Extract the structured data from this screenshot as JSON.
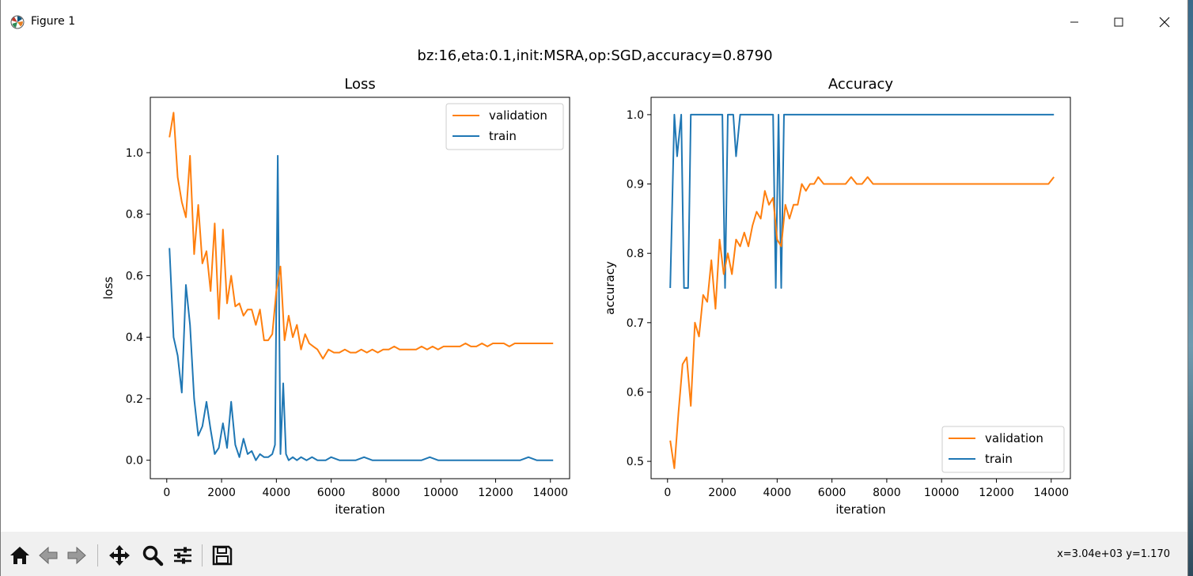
{
  "window": {
    "title": "Figure 1",
    "icon": "matplotlib-logo-icon",
    "controls": [
      "minimize-icon",
      "maximize-icon",
      "close-icon"
    ]
  },
  "figure": {
    "suptitle": "bz:16,eta:0.1,init:MSRA,op:SGD,accuracy=0.8790"
  },
  "toolbar": {
    "buttons": [
      "home-icon",
      "back-icon",
      "forward-icon",
      "pan-icon",
      "zoom-icon",
      "configure-icon",
      "save-icon"
    ],
    "coords": "x=3.04e+03 y=1.170"
  },
  "colors": {
    "validation": "#ff7f0e",
    "train": "#1f77b4"
  },
  "chart_data": [
    {
      "type": "line",
      "title": "Loss",
      "xlabel": "iteration",
      "ylabel": "loss",
      "xlim": [
        -600,
        14700
      ],
      "ylim": [
        -0.06,
        1.18
      ],
      "xticks": [
        0,
        2000,
        4000,
        6000,
        8000,
        10000,
        12000,
        14000
      ],
      "xtick_labels": [
        "0",
        "2000",
        "4000",
        "6000",
        "8000",
        "10000",
        "12000",
        "14000"
      ],
      "yticks": [
        0.0,
        0.2,
        0.4,
        0.6,
        0.8,
        1.0
      ],
      "ytick_labels": [
        "0.0",
        "0.2",
        "0.4",
        "0.6",
        "0.8",
        "1.0"
      ],
      "legend": {
        "loc": "upper right",
        "entries": [
          "validation",
          "train"
        ]
      },
      "grid": false,
      "series": [
        {
          "name": "validation",
          "x": [
            100,
            250,
            400,
            550,
            700,
            850,
            1000,
            1150,
            1300,
            1450,
            1600,
            1750,
            1900,
            2050,
            2200,
            2350,
            2500,
            2650,
            2800,
            2950,
            3100,
            3250,
            3400,
            3550,
            3700,
            3850,
            4000,
            4150,
            4300,
            4450,
            4600,
            4750,
            4900,
            5050,
            5200,
            5350,
            5500,
            5700,
            5900,
            6100,
            6300,
            6500,
            6700,
            6900,
            7100,
            7300,
            7500,
            7700,
            7900,
            8100,
            8300,
            8500,
            8700,
            8900,
            9100,
            9300,
            9500,
            9700,
            9900,
            10100,
            10300,
            10500,
            10700,
            10900,
            11100,
            11300,
            11500,
            11700,
            11900,
            12100,
            12300,
            12500,
            12700,
            12900,
            13100,
            13300,
            13500,
            13700,
            13900,
            14100
          ],
          "y": [
            1.05,
            1.13,
            0.92,
            0.84,
            0.79,
            0.99,
            0.67,
            0.83,
            0.64,
            0.68,
            0.55,
            0.77,
            0.46,
            0.75,
            0.51,
            0.6,
            0.5,
            0.51,
            0.47,
            0.49,
            0.49,
            0.44,
            0.49,
            0.39,
            0.39,
            0.41,
            0.55,
            0.63,
            0.39,
            0.47,
            0.4,
            0.44,
            0.36,
            0.41,
            0.38,
            0.37,
            0.36,
            0.33,
            0.36,
            0.35,
            0.35,
            0.36,
            0.35,
            0.35,
            0.36,
            0.35,
            0.36,
            0.35,
            0.36,
            0.36,
            0.37,
            0.36,
            0.36,
            0.36,
            0.36,
            0.37,
            0.36,
            0.37,
            0.36,
            0.37,
            0.37,
            0.37,
            0.37,
            0.38,
            0.37,
            0.37,
            0.38,
            0.37,
            0.38,
            0.38,
            0.38,
            0.37,
            0.38,
            0.38,
            0.38,
            0.38,
            0.38,
            0.38,
            0.38,
            0.38
          ]
        },
        {
          "name": "train",
          "x": [
            100,
            250,
            400,
            550,
            700,
            850,
            1000,
            1150,
            1300,
            1450,
            1600,
            1750,
            1900,
            2050,
            2200,
            2350,
            2500,
            2650,
            2800,
            2950,
            3100,
            3250,
            3400,
            3550,
            3700,
            3850,
            3950,
            4050,
            4150,
            4250,
            4350,
            4450,
            4600,
            4750,
            4900,
            5100,
            5300,
            5500,
            5800,
            6000,
            6300,
            6600,
            6900,
            7200,
            7500,
            7800,
            8100,
            8400,
            8700,
            9000,
            9300,
            9600,
            9900,
            10200,
            10500,
            10800,
            11100,
            11400,
            11700,
            12000,
            12300,
            12600,
            12900,
            13200,
            13500,
            13800,
            14100
          ],
          "y": [
            0.69,
            0.4,
            0.34,
            0.22,
            0.57,
            0.44,
            0.2,
            0.08,
            0.11,
            0.19,
            0.1,
            0.02,
            0.04,
            0.12,
            0.04,
            0.19,
            0.05,
            0.01,
            0.07,
            0.02,
            0.03,
            0.0,
            0.02,
            0.01,
            0.01,
            0.02,
            0.05,
            0.99,
            0.02,
            0.25,
            0.02,
            0.0,
            0.01,
            0.0,
            0.01,
            0.0,
            0.01,
            0.0,
            0.0,
            0.01,
            0.0,
            0.0,
            0.0,
            0.01,
            0.0,
            0.0,
            0.0,
            0.0,
            0.0,
            0.0,
            0.0,
            0.01,
            0.0,
            0.0,
            0.0,
            0.0,
            0.0,
            0.0,
            0.0,
            0.0,
            0.0,
            0.0,
            0.0,
            0.01,
            0.0,
            0.0,
            0.0
          ]
        }
      ]
    },
    {
      "type": "line",
      "title": "Accuracy",
      "xlabel": "iteration",
      "ylabel": "accuracy",
      "xlim": [
        -600,
        14700
      ],
      "ylim": [
        0.475,
        1.025
      ],
      "xticks": [
        0,
        2000,
        4000,
        6000,
        8000,
        10000,
        12000,
        14000
      ],
      "xtick_labels": [
        "0",
        "2000",
        "4000",
        "6000",
        "8000",
        "10000",
        "12000",
        "14000"
      ],
      "yticks": [
        0.5,
        0.6,
        0.7,
        0.8,
        0.9,
        1.0
      ],
      "ytick_labels": [
        "0.5",
        "0.6",
        "0.7",
        "0.8",
        "0.9",
        "1.0"
      ],
      "legend": {
        "loc": "lower right",
        "entries": [
          "validation",
          "train"
        ]
      },
      "grid": false,
      "series": [
        {
          "name": "validation",
          "x": [
            100,
            250,
            400,
            550,
            700,
            850,
            1000,
            1150,
            1300,
            1450,
            1600,
            1750,
            1900,
            2050,
            2200,
            2350,
            2500,
            2650,
            2800,
            2950,
            3100,
            3250,
            3400,
            3550,
            3700,
            3850,
            4000,
            4150,
            4300,
            4450,
            4600,
            4750,
            4900,
            5050,
            5200,
            5350,
            5500,
            5700,
            5900,
            6100,
            6300,
            6500,
            6700,
            6900,
            7100,
            7300,
            7500,
            7700,
            7900,
            8100,
            8300,
            8500,
            8700,
            8900,
            9100,
            9300,
            9500,
            9700,
            9900,
            10100,
            10300,
            10500,
            10700,
            10900,
            11100,
            11300,
            11500,
            11700,
            11900,
            12100,
            12300,
            12500,
            12700,
            12900,
            13100,
            13300,
            13500,
            13700,
            13900,
            14100
          ],
          "y": [
            0.53,
            0.49,
            0.57,
            0.64,
            0.65,
            0.58,
            0.7,
            0.68,
            0.74,
            0.73,
            0.79,
            0.72,
            0.82,
            0.77,
            0.8,
            0.77,
            0.82,
            0.81,
            0.83,
            0.81,
            0.84,
            0.86,
            0.85,
            0.89,
            0.87,
            0.88,
            0.82,
            0.81,
            0.87,
            0.85,
            0.87,
            0.87,
            0.9,
            0.89,
            0.9,
            0.9,
            0.91,
            0.9,
            0.9,
            0.9,
            0.9,
            0.9,
            0.91,
            0.9,
            0.9,
            0.91,
            0.9,
            0.9,
            0.9,
            0.9,
            0.9,
            0.9,
            0.9,
            0.9,
            0.9,
            0.9,
            0.9,
            0.9,
            0.9,
            0.9,
            0.9,
            0.9,
            0.9,
            0.9,
            0.9,
            0.9,
            0.9,
            0.9,
            0.9,
            0.9,
            0.9,
            0.9,
            0.9,
            0.9,
            0.9,
            0.9,
            0.9,
            0.9,
            0.9,
            0.91
          ]
        },
        {
          "name": "train",
          "x": [
            100,
            250,
            350,
            500,
            600,
            750,
            850,
            950,
            1050,
            1250,
            1500,
            1800,
            2000,
            2100,
            2200,
            2300,
            2400,
            2500,
            2650,
            2800,
            2950,
            3150,
            3400,
            3700,
            3850,
            3950,
            4050,
            4150,
            4250,
            4350,
            4500,
            5000,
            6000,
            7000,
            8000,
            9000,
            10000,
            11000,
            12000,
            13000,
            14100
          ],
          "y": [
            0.75,
            1.0,
            0.94,
            1.0,
            0.75,
            0.75,
            1.0,
            1.0,
            1.0,
            1.0,
            1.0,
            1.0,
            1.0,
            0.75,
            1.0,
            1.0,
            1.0,
            0.94,
            1.0,
            1.0,
            1.0,
            1.0,
            1.0,
            1.0,
            1.0,
            0.75,
            1.0,
            0.75,
            1.0,
            1.0,
            1.0,
            1.0,
            1.0,
            1.0,
            1.0,
            1.0,
            1.0,
            1.0,
            1.0,
            1.0,
            1.0
          ]
        }
      ]
    }
  ]
}
